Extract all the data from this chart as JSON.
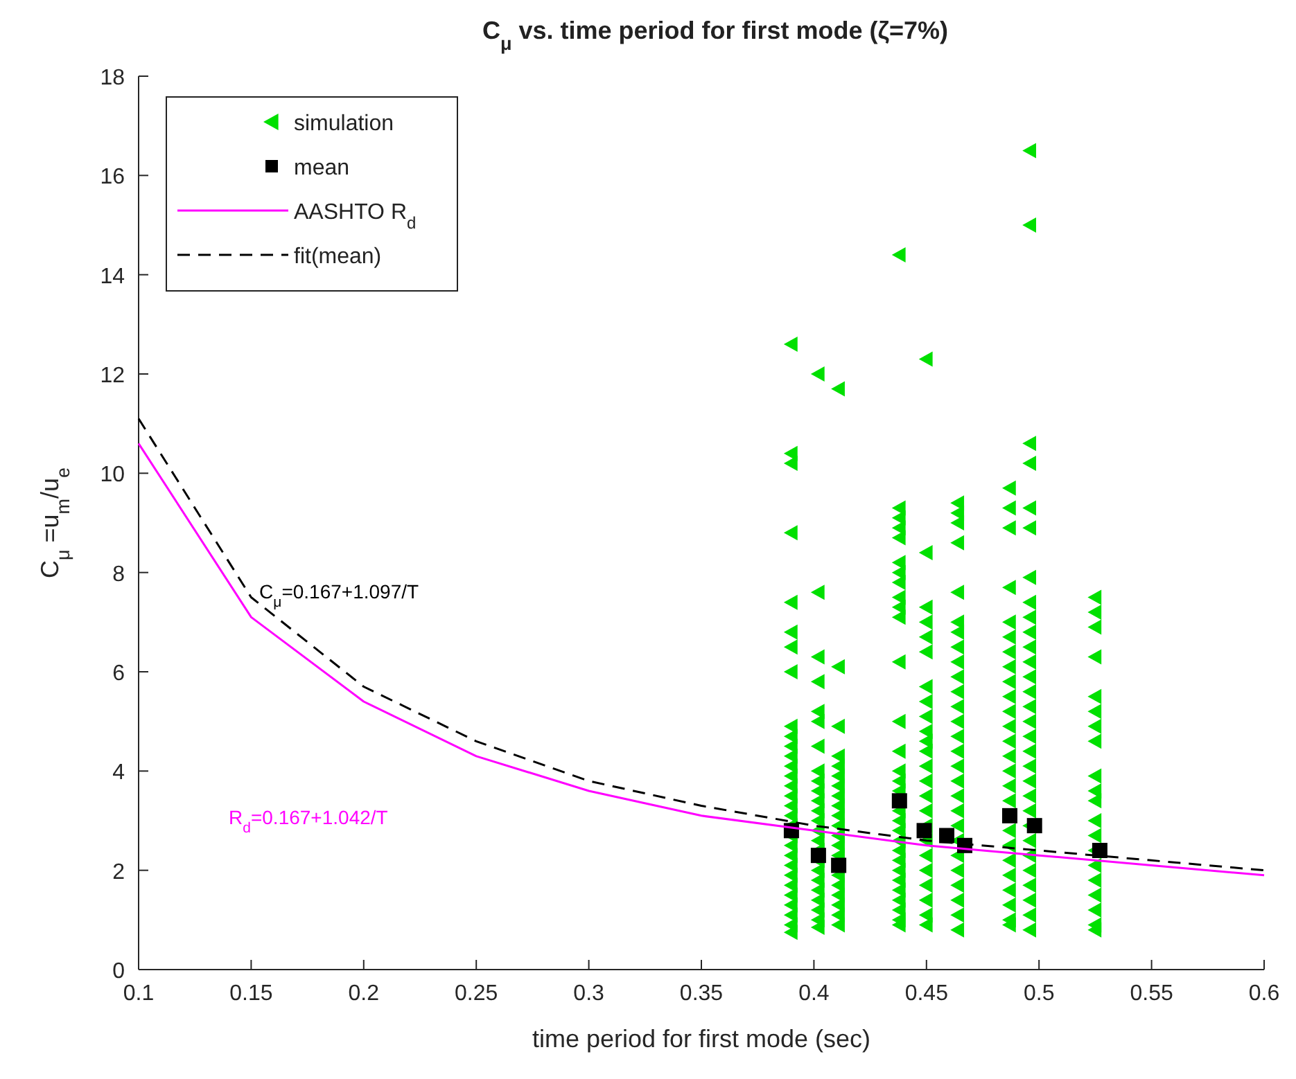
{
  "chart_data": {
    "type": "scatter",
    "title": "C$_{μ}$ vs. time period for first mode (ζ=7%)",
    "xlabel": "time period for first mode (sec)",
    "ylabel": "C$_{μ}$ =u$_{m}$/u$_{e}$",
    "xlim": [
      0.1,
      0.6
    ],
    "xticks": [
      0.1,
      0.15,
      0.2,
      0.25,
      0.3,
      0.35,
      0.4,
      0.45,
      0.5,
      0.55,
      0.6
    ],
    "ylim": [
      0,
      18
    ],
    "yticks": [
      0,
      2,
      4,
      6,
      8,
      10,
      12,
      14,
      16,
      18
    ],
    "grid": false,
    "legend": "top left",
    "annotations": [
      "C$_{μ}$=0.167+1.097/T",
      "R$_{d}$=0.167+1.042/T"
    ],
    "series": [
      {
        "name": "simulation",
        "marker": "triangle",
        "color": "#00e000",
        "x": [
          0.39,
          0.39,
          0.39,
          0.39,
          0.39,
          0.39,
          0.39,
          0.39,
          0.39,
          0.39,
          0.39,
          0.39,
          0.39,
          0.39,
          0.39,
          0.39,
          0.39,
          0.39,
          0.39,
          0.39,
          0.39,
          0.39,
          0.39,
          0.39,
          0.39,
          0.39,
          0.39,
          0.39,
          0.39,
          0.39,
          0.402,
          0.402,
          0.402,
          0.402,
          0.402,
          0.402,
          0.402,
          0.402,
          0.402,
          0.402,
          0.402,
          0.402,
          0.402,
          0.402,
          0.402,
          0.402,
          0.402,
          0.402,
          0.402,
          0.402,
          0.402,
          0.402,
          0.402,
          0.402,
          0.411,
          0.411,
          0.411,
          0.411,
          0.411,
          0.411,
          0.411,
          0.411,
          0.411,
          0.411,
          0.411,
          0.411,
          0.411,
          0.411,
          0.411,
          0.411,
          0.411,
          0.411,
          0.411,
          0.411,
          0.438,
          0.438,
          0.438,
          0.438,
          0.438,
          0.438,
          0.438,
          0.438,
          0.438,
          0.438,
          0.438,
          0.438,
          0.438,
          0.438,
          0.438,
          0.438,
          0.438,
          0.438,
          0.438,
          0.438,
          0.438,
          0.438,
          0.438,
          0.438,
          0.438,
          0.438,
          0.438,
          0.438,
          0.438,
          0.438,
          0.45,
          0.45,
          0.45,
          0.45,
          0.45,
          0.45,
          0.45,
          0.45,
          0.45,
          0.45,
          0.45,
          0.45,
          0.45,
          0.45,
          0.45,
          0.45,
          0.45,
          0.45,
          0.45,
          0.45,
          0.45,
          0.45,
          0.45,
          0.45,
          0.464,
          0.464,
          0.464,
          0.464,
          0.464,
          0.464,
          0.464,
          0.464,
          0.464,
          0.464,
          0.464,
          0.464,
          0.464,
          0.464,
          0.464,
          0.464,
          0.464,
          0.464,
          0.464,
          0.464,
          0.464,
          0.464,
          0.464,
          0.464,
          0.464,
          0.464,
          0.464,
          0.487,
          0.487,
          0.487,
          0.487,
          0.487,
          0.487,
          0.487,
          0.487,
          0.487,
          0.487,
          0.487,
          0.487,
          0.487,
          0.487,
          0.487,
          0.487,
          0.487,
          0.487,
          0.487,
          0.487,
          0.487,
          0.487,
          0.487,
          0.487,
          0.487,
          0.496,
          0.496,
          0.496,
          0.496,
          0.496,
          0.496,
          0.496,
          0.496,
          0.496,
          0.496,
          0.496,
          0.496,
          0.496,
          0.496,
          0.496,
          0.496,
          0.496,
          0.496,
          0.496,
          0.496,
          0.496,
          0.496,
          0.496,
          0.496,
          0.496,
          0.496,
          0.496,
          0.496,
          0.496,
          0.496,
          0.525,
          0.525,
          0.525,
          0.525,
          0.525,
          0.525,
          0.525,
          0.525,
          0.525,
          0.525,
          0.525,
          0.525,
          0.525,
          0.525,
          0.525,
          0.525,
          0.525,
          0.525,
          0.525,
          0.525
        ],
        "values": [
          12.6,
          10.4,
          10.2,
          8.8,
          7.4,
          6.8,
          6.5,
          6.0,
          4.9,
          4.7,
          4.5,
          4.3,
          4.1,
          3.9,
          3.7,
          3.5,
          3.3,
          3.1,
          2.9,
          2.7,
          2.5,
          2.3,
          2.1,
          1.9,
          1.7,
          1.5,
          1.3,
          1.1,
          0.9,
          0.75,
          12.0,
          7.6,
          6.3,
          5.8,
          5.2,
          5.0,
          4.5,
          4.0,
          3.8,
          3.6,
          3.4,
          3.2,
          3.0,
          2.8,
          2.6,
          2.4,
          2.2,
          2.0,
          1.8,
          1.6,
          1.4,
          1.2,
          1.0,
          0.85,
          11.7,
          6.1,
          4.9,
          4.3,
          4.1,
          3.9,
          3.7,
          3.5,
          3.3,
          3.1,
          2.9,
          2.7,
          2.5,
          2.3,
          1.9,
          1.7,
          1.5,
          1.3,
          1.1,
          0.9,
          14.4,
          9.3,
          9.1,
          8.9,
          8.7,
          8.2,
          8.0,
          7.8,
          7.5,
          7.3,
          7.1,
          6.2,
          5.0,
          4.4,
          4.0,
          3.8,
          3.6,
          3.2,
          3.0,
          2.8,
          2.6,
          2.4,
          2.2,
          2.0,
          1.8,
          1.6,
          1.4,
          1.2,
          1.0,
          0.9,
          12.3,
          8.4,
          7.3,
          7.0,
          6.7,
          6.4,
          5.7,
          5.4,
          5.1,
          4.8,
          4.6,
          4.4,
          4.1,
          3.8,
          3.5,
          3.2,
          2.9,
          2.6,
          2.3,
          2.0,
          1.7,
          1.4,
          1.1,
          0.9,
          9.4,
          9.2,
          9.0,
          8.6,
          7.6,
          7.0,
          6.8,
          6.5,
          6.2,
          5.9,
          5.6,
          5.3,
          5.0,
          4.7,
          4.4,
          4.1,
          3.8,
          3.5,
          3.2,
          2.9,
          2.6,
          2.3,
          2.0,
          1.7,
          1.4,
          1.1,
          0.8,
          9.7,
          9.3,
          8.9,
          7.7,
          7.0,
          6.7,
          6.4,
          6.1,
          5.8,
          5.5,
          5.2,
          4.9,
          4.6,
          4.3,
          4.0,
          3.7,
          3.4,
          2.8,
          2.5,
          2.2,
          1.9,
          1.6,
          1.3,
          1.0,
          0.9,
          16.5,
          15.0,
          10.6,
          10.2,
          9.3,
          8.9,
          7.9,
          7.4,
          7.1,
          6.8,
          6.5,
          6.2,
          5.9,
          5.6,
          5.3,
          5.0,
          4.7,
          4.4,
          4.1,
          3.8,
          3.5,
          3.2,
          2.9,
          2.6,
          2.3,
          2.0,
          1.7,
          1.4,
          1.1,
          0.8,
          7.5,
          7.2,
          6.9,
          6.3,
          5.5,
          5.2,
          4.9,
          4.6,
          3.9,
          3.6,
          3.4,
          3.0,
          2.7,
          2.4,
          2.1,
          1.8,
          1.5,
          1.2,
          0.9,
          0.8
        ]
      },
      {
        "name": "mean",
        "marker": "square",
        "color": "#000000",
        "x": [
          0.39,
          0.402,
          0.411,
          0.438,
          0.449,
          0.459,
          0.467,
          0.487,
          0.498,
          0.527
        ],
        "values": [
          2.8,
          2.3,
          2.1,
          3.4,
          2.8,
          2.7,
          2.5,
          3.1,
          2.9,
          2.4
        ]
      },
      {
        "name": "AASHTO R$_{d}$",
        "type": "line",
        "marker": "none",
        "line_style": "solid",
        "color": "#ff00ff",
        "x": [
          0.1,
          0.15,
          0.2,
          0.25,
          0.3,
          0.35,
          0.4,
          0.45,
          0.5,
          0.55,
          0.6
        ],
        "values": [
          10.6,
          7.1,
          5.4,
          4.3,
          3.6,
          3.1,
          2.8,
          2.5,
          2.3,
          2.1,
          1.9
        ]
      },
      {
        "name": "fit(mean)",
        "type": "line",
        "marker": "none",
        "line_style": "dashed",
        "color": "#000000",
        "x": [
          0.1,
          0.15,
          0.2,
          0.25,
          0.3,
          0.35,
          0.4,
          0.45,
          0.5,
          0.55,
          0.6
        ],
        "values": [
          11.1,
          7.5,
          5.7,
          4.6,
          3.8,
          3.3,
          2.9,
          2.6,
          2.4,
          2.2,
          2.0
        ]
      }
    ]
  }
}
